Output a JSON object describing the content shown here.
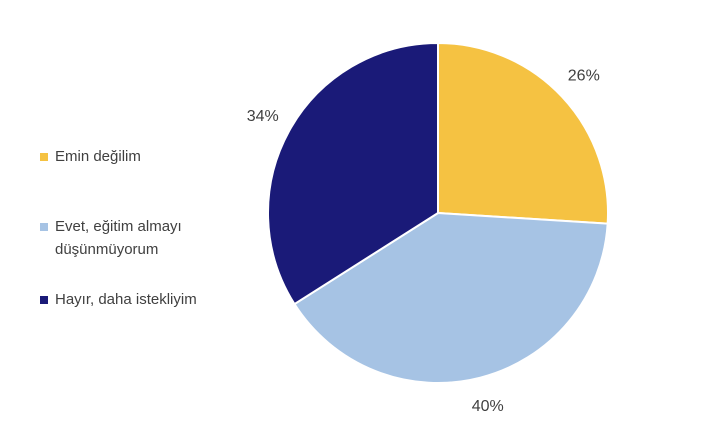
{
  "chart_data": {
    "type": "pie",
    "categories": [
      "Emin değilim",
      "Evet, eğitim almayı düşünmüyorum",
      "Hayır, daha istekliyim"
    ],
    "values": [
      26,
      40,
      34
    ],
    "value_labels": [
      "26%",
      "40%",
      "34%"
    ],
    "colors": [
      "#f5c242",
      "#a6c3e4",
      "#1a1a78"
    ],
    "legend": "left"
  }
}
